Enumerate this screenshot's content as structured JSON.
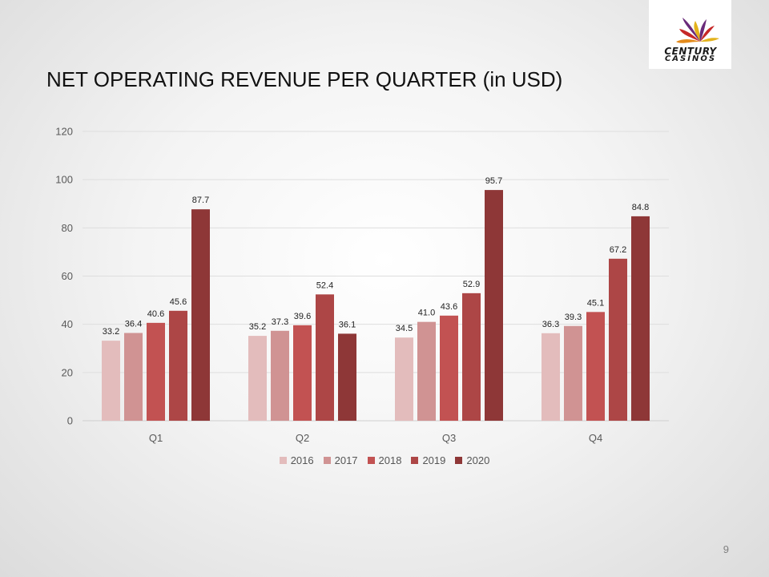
{
  "header": {
    "title": "NET OPERATING REVENUE PER QUARTER (in USD)",
    "logo": {
      "word1": "CENTURY",
      "word2": "CASINOS"
    }
  },
  "page_number": "9",
  "chart_data": {
    "type": "bar",
    "categories": [
      "Q1",
      "Q2",
      "Q3",
      "Q4"
    ],
    "ylim": [
      0,
      120
    ],
    "yticks": [
      0,
      20,
      40,
      60,
      80,
      100,
      120
    ],
    "grid": true,
    "legend_position": "bottom",
    "series": [
      {
        "name": "2016",
        "color": "#e3bcbc",
        "values": [
          33.2,
          35.2,
          34.5,
          36.3
        ]
      },
      {
        "name": "2017",
        "color": "#d09393",
        "values": [
          36.4,
          37.3,
          41.0,
          39.3
        ]
      },
      {
        "name": "2018",
        "color": "#c25252",
        "values": [
          40.6,
          39.6,
          43.6,
          45.1
        ]
      },
      {
        "name": "2019",
        "color": "#ad4646",
        "values": [
          45.6,
          52.4,
          52.9,
          67.2
        ]
      },
      {
        "name": "2020",
        "color": "#8e3737",
        "values": [
          87.7,
          36.1,
          95.7,
          84.8
        ]
      }
    ]
  }
}
